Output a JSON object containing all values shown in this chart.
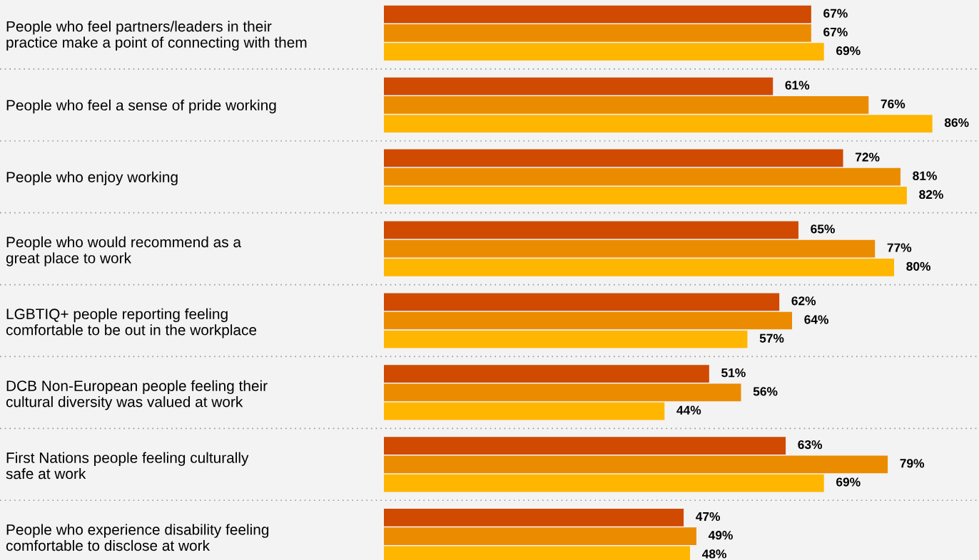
{
  "chart_data": {
    "type": "bar",
    "orientation": "horizontal",
    "categories": [
      "People who feel partners/leaders in their\npractice make a point of connecting with them",
      "People who feel a sense of pride working",
      "People who enjoy working",
      "People who would recommend as a\ngreat place to work",
      "LGBTIQ+ people reporting feeling\ncomfortable to be out in the workplace",
      "DCB Non-European people feeling their\ncultural diversity was valued at work",
      "First Nations people feeling culturally\nsafe at work",
      "People who experience disability feeling\ncomfortable to disclose at work"
    ],
    "series": [
      {
        "color": "#d04a02",
        "values": [
          67,
          61,
          72,
          65,
          62,
          51,
          63,
          47
        ],
        "value_labels": [
          "67%",
          "61%",
          "72%",
          "65%",
          "62%",
          "51%",
          "63%",
          "47%"
        ]
      },
      {
        "color": "#eb8c00",
        "values": [
          67,
          76,
          81,
          77,
          64,
          56,
          79,
          49
        ],
        "value_labels": [
          "67%",
          "76%",
          "81%",
          "77%",
          "64%",
          "56%",
          "79%",
          "49%"
        ]
      },
      {
        "color": "#ffb600",
        "values": [
          69,
          86,
          82,
          80,
          57,
          44,
          69,
          48
        ],
        "value_labels": [
          "69%",
          "86%",
          "82%",
          "80%",
          "57%",
          "44%",
          "69%",
          "48%"
        ]
      }
    ],
    "legend": false,
    "grid": false
  }
}
